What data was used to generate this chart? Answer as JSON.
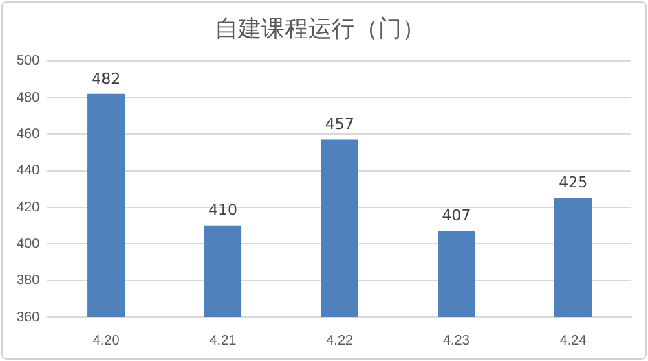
{
  "chart_data": {
    "type": "bar",
    "title": "自建课程运行（门）",
    "categories": [
      "4.20",
      "4.21",
      "4.22",
      "4.23",
      "4.24"
    ],
    "values": [
      482,
      410,
      457,
      407,
      425
    ],
    "color": "#4f81bd",
    "ylim": [
      360,
      500
    ],
    "yticks": [
      360,
      380,
      400,
      420,
      440,
      460,
      480,
      500
    ],
    "grid": "y",
    "data_labels": true,
    "legend": false
  }
}
